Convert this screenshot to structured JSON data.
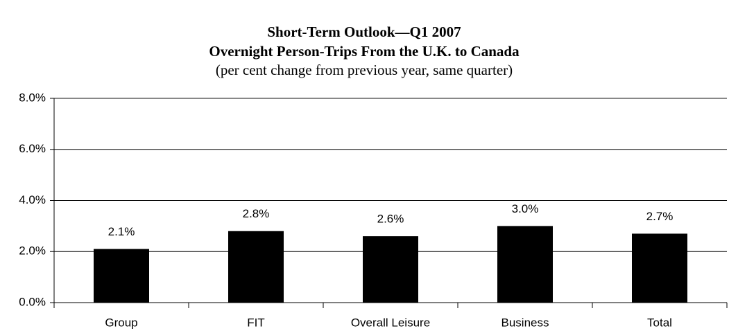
{
  "chart_data": {
    "type": "bar",
    "title": "Short-Term Outlook—Q1 2007",
    "subtitle": "Overnight Person-Trips From the U.K. to Canada",
    "description": "(per cent change from previous year, same quarter)",
    "categories": [
      "Group",
      "FIT",
      "Overall Leisure",
      "Business",
      "Total"
    ],
    "values": [
      2.1,
      2.8,
      2.6,
      3.0,
      2.7
    ],
    "value_labels": [
      "2.1%",
      "2.8%",
      "2.6%",
      "3.0%",
      "2.7%"
    ],
    "color": "#000000",
    "ylim": [
      0,
      8
    ],
    "yticks": [
      {
        "value": 0,
        "label": "0.0%"
      },
      {
        "value": 2,
        "label": "2.0%"
      },
      {
        "value": 4,
        "label": "4.0%"
      },
      {
        "value": 6,
        "label": "6.0%"
      },
      {
        "value": 8,
        "label": "8.0%"
      }
    ],
    "grid": true
  }
}
